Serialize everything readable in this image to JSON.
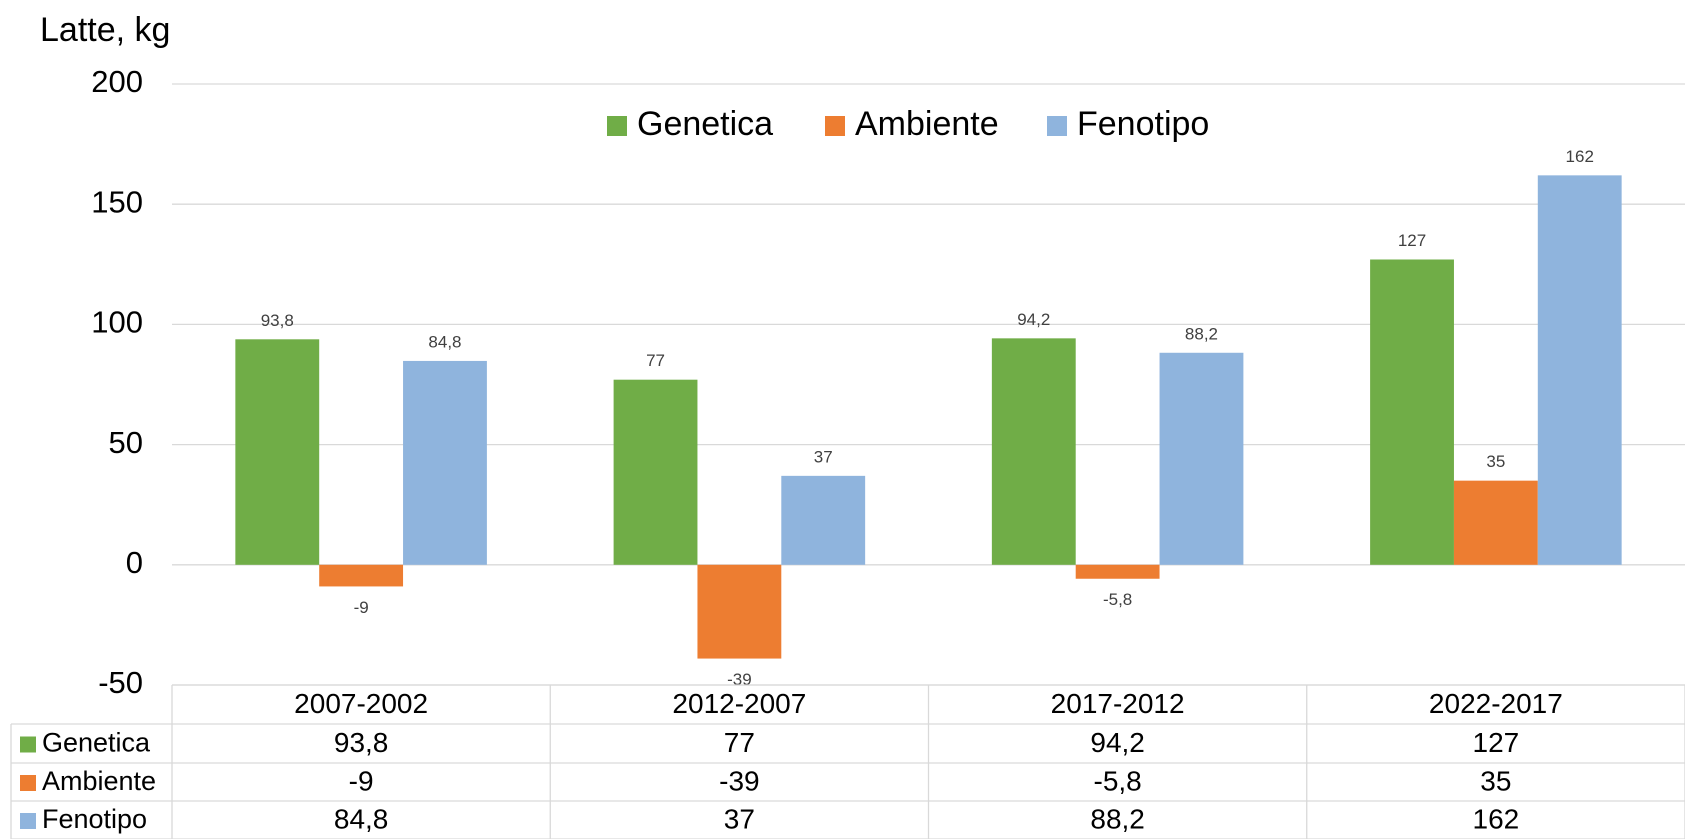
{
  "chart_data": {
    "type": "bar",
    "y_label": "Latte, kg",
    "categories": [
      "2007-2002",
      "2012-2007",
      "2017-2012",
      "2022-2017"
    ],
    "series": [
      {
        "name": "Genetica",
        "color": "#70ad47",
        "values": [
          93.8,
          77,
          94.2,
          127
        ],
        "value_labels": [
          "93,8",
          "77",
          "94,2",
          "127"
        ]
      },
      {
        "name": "Ambiente",
        "color": "#ed7d31",
        "values": [
          -9,
          -39,
          -5.8,
          35
        ],
        "value_labels": [
          "-9",
          "-39",
          "-5,8",
          "35"
        ]
      },
      {
        "name": "Fenotipo",
        "color": "#8fb4dd",
        "values": [
          84.8,
          37,
          88.2,
          162
        ],
        "value_labels": [
          "84,8",
          "37",
          "88,2",
          "162"
        ]
      }
    ],
    "ylim": [
      -50,
      200
    ],
    "yticks": [
      -50,
      0,
      50,
      100,
      150,
      200
    ],
    "grid": true,
    "legend": "top"
  }
}
